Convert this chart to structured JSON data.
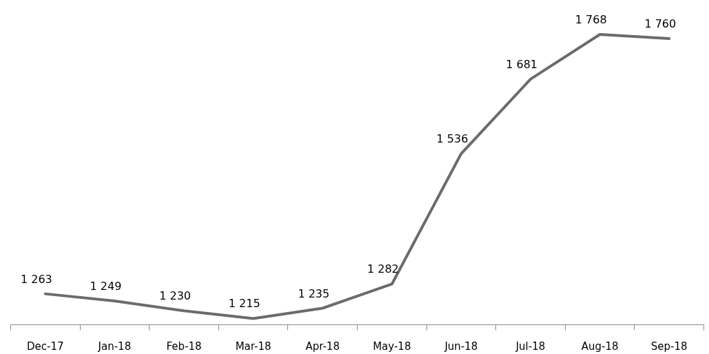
{
  "chart_data": {
    "type": "line",
    "categories": [
      "Dec-17",
      "Jan-18",
      "Feb-18",
      "Mar-18",
      "Apr-18",
      "May-18",
      "Jun-18",
      "Jul-18",
      "Aug-18",
      "Sep-18"
    ],
    "series": [
      {
        "color": "#6b6b6b",
        "values": [
          1263,
          1249,
          1230,
          1215,
          1235,
          1282,
          1536,
          1681,
          1768,
          1760
        ],
        "value_labels": [
          "1 263",
          "1 249",
          "1 230",
          "1 215",
          "1 235",
          "1 282",
          "1 536",
          "1 681",
          "1 768",
          "1 760"
        ]
      }
    ],
    "grid": false,
    "marker": "none",
    "line_style": "solid"
  }
}
